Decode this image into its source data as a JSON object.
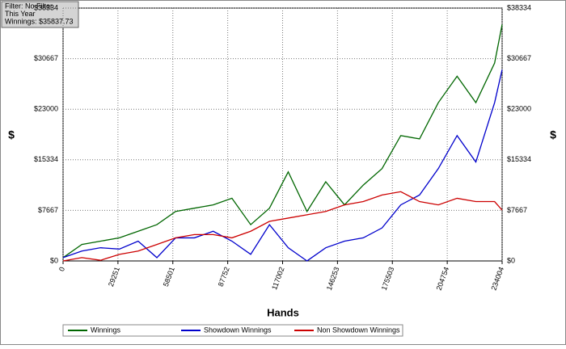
{
  "chart_data": {
    "type": "line",
    "info_box": [
      "Filter: No Filter",
      "This Year",
      "Winnings: $35837.73"
    ],
    "x_label": "Hands",
    "y_label": "$",
    "y2_label": "$",
    "xlim": [
      0,
      234004
    ],
    "xticks": [
      0,
      29251,
      58501,
      87752,
      117002,
      146253,
      175503,
      204754,
      234004
    ],
    "ylim": [
      0,
      38334
    ],
    "yticks": [
      {
        "value": 0,
        "label": "$0"
      },
      {
        "value": 7667,
        "label": "$7667"
      },
      {
        "value": 15334,
        "label": "$15334"
      },
      {
        "value": 23000,
        "label": "$23000"
      },
      {
        "value": 30667,
        "label": "$30667"
      },
      {
        "value": 38334,
        "label": "$38334"
      }
    ],
    "grid": true,
    "x": [
      0,
      10000,
      20000,
      30000,
      40000,
      50000,
      60000,
      70000,
      80000,
      90000,
      100000,
      110000,
      120000,
      130000,
      140000,
      150000,
      160000,
      170000,
      180000,
      190000,
      200000,
      210000,
      220000,
      230000,
      234004
    ],
    "series": [
      {
        "name": "Winnings",
        "color": "#006600",
        "values": [
          500,
          2500,
          3000,
          3500,
          4500,
          5500,
          7500,
          8000,
          8500,
          9500,
          5500,
          8000,
          13500,
          7500,
          12000,
          8500,
          11500,
          14000,
          19000,
          18500,
          24000,
          28000,
          24000,
          30000,
          35838
        ]
      },
      {
        "name": "Showdown Winnings",
        "color": "#0000cc",
        "values": [
          500,
          1500,
          2000,
          1800,
          3000,
          500,
          3500,
          3500,
          4500,
          3000,
          1000,
          5500,
          2000,
          0,
          2000,
          3000,
          3500,
          5000,
          8500,
          10000,
          14000,
          19000,
          15000,
          24000,
          29000
        ]
      },
      {
        "name": "Non Showdown Winnings",
        "color": "#cc0000",
        "values": [
          0,
          500,
          100,
          1000,
          1500,
          2500,
          3500,
          4000,
          4000,
          3500,
          4500,
          6000,
          6500,
          7000,
          7500,
          8500,
          9000,
          10000,
          10500,
          9000,
          8500,
          9500,
          9000,
          9000,
          7700
        ]
      }
    ]
  }
}
